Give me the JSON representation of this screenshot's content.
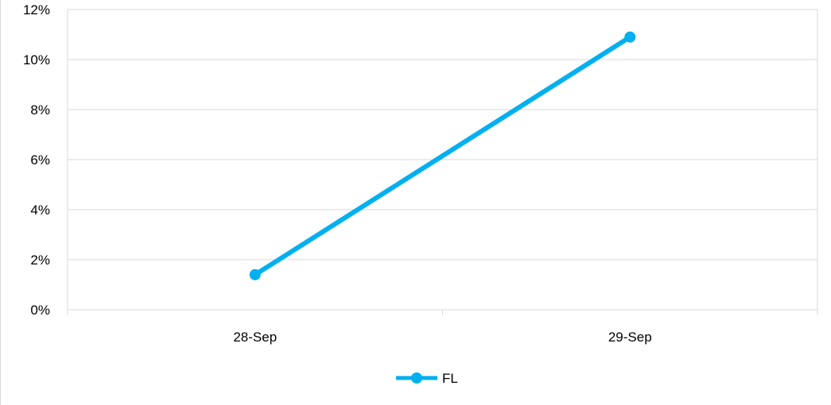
{
  "chart_data": {
    "type": "line",
    "categories": [
      "28-Sep",
      "29-Sep"
    ],
    "series": [
      {
        "name": "FL",
        "values": [
          1.4,
          10.9
        ],
        "color": "#00B0F0"
      }
    ],
    "y_ticks": [
      "0%",
      "2%",
      "4%",
      "6%",
      "8%",
      "10%",
      "12%"
    ],
    "ylim": [
      0,
      12
    ],
    "y_unit": "%",
    "grid": true,
    "legend_position": "bottom",
    "gridline_color": "#d9d9d9"
  }
}
